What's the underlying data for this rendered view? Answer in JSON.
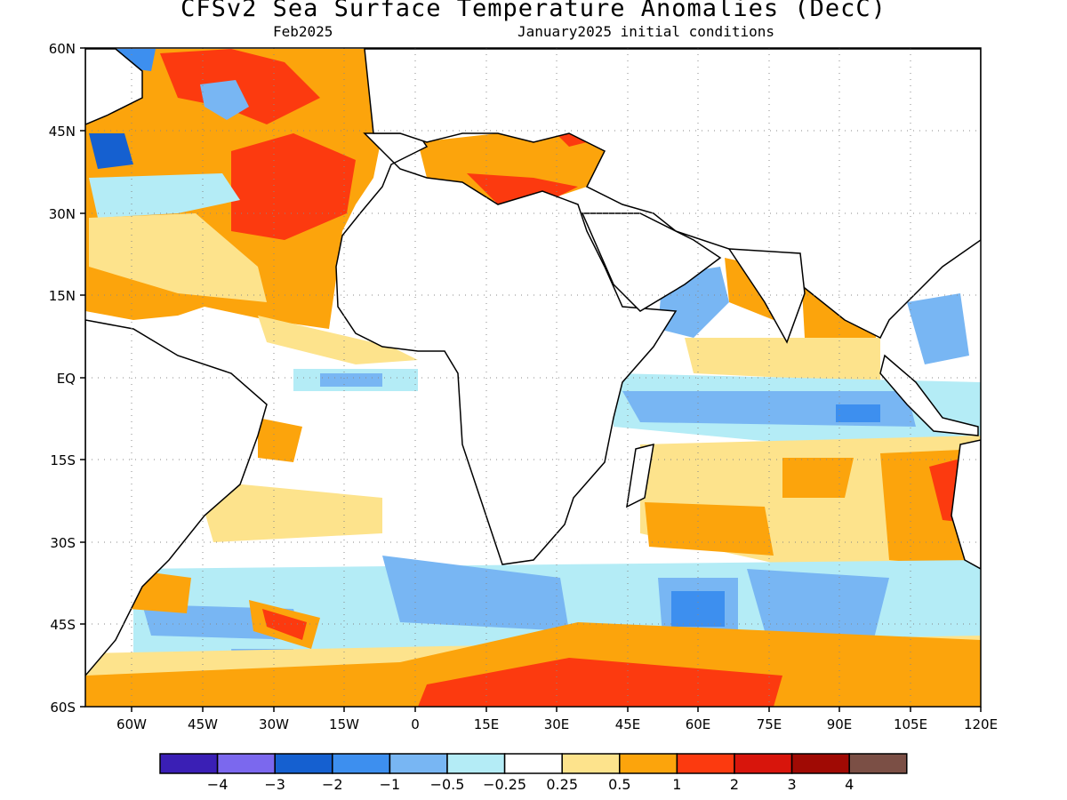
{
  "title": "CFSv2 Sea Surface Temperature Anomalies (DecC)",
  "subtitle_left": "Feb2025",
  "subtitle_right": "January2025 initial conditions",
  "map": {
    "lon_range": [
      -70,
      120
    ],
    "lat_range": [
      -60,
      60
    ],
    "grid_dotted": true,
    "x_ticks": [
      "60W",
      "45W",
      "30W",
      "15W",
      "0",
      "15E",
      "30E",
      "45E",
      "60E",
      "75E",
      "90E",
      "105E",
      "120E"
    ],
    "y_ticks": [
      "60N",
      "45N",
      "30N",
      "15N",
      "EQ",
      "15S",
      "30S",
      "45S",
      "60S"
    ]
  },
  "colorbar": {
    "colors": [
      "#3a1fb5",
      "#7b68ee",
      "#1560d0",
      "#3d8fef",
      "#78b6f3",
      "#b4ecf6",
      "#ffffff",
      "#fde38c",
      "#fca40c",
      "#fc3a0f",
      "#d8150c",
      "#a00a04",
      "#7b4f45"
    ],
    "labels": [
      "−4",
      "−3",
      "−2",
      "−1",
      "−0.5",
      "−0.25",
      "0.25",
      "0.5",
      "1",
      "2",
      "3",
      "4"
    ]
  }
}
